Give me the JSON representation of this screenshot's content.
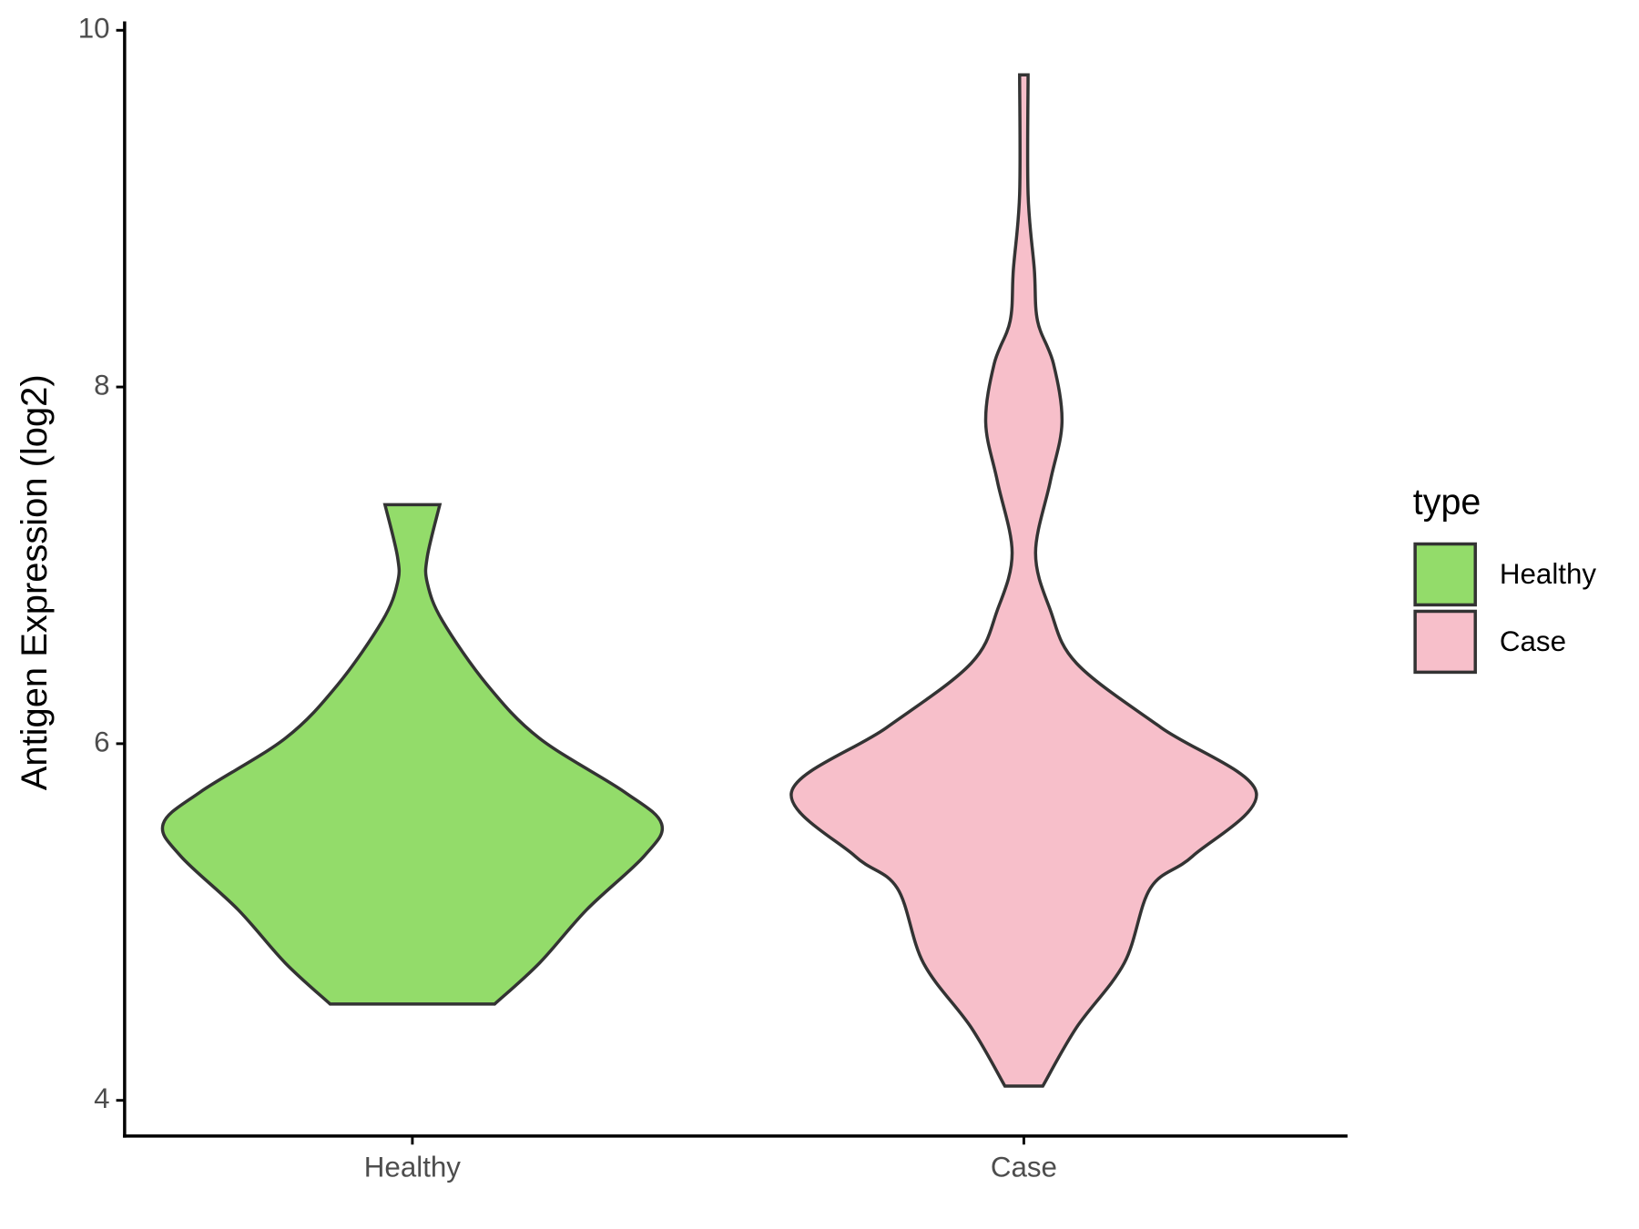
{
  "chart_data": {
    "type": "violin",
    "y_label": "Antigen Expression (log2)",
    "categories": [
      "Healthy",
      "Case"
    ],
    "legend_title": "type",
    "ylim": [
      3.8,
      10.05
    ],
    "yticks": [
      4,
      6,
      8,
      10
    ],
    "series": [
      {
        "name": "Healthy",
        "color": "#93dc6a",
        "y": [
          7.34,
          7.05,
          6.9,
          6.69,
          6.33,
          6.03,
          5.73,
          5.55,
          5.37,
          5.07,
          4.77,
          4.54
        ],
        "density": [
          0.11,
          0.06,
          0.06,
          0.12,
          0.3,
          0.51,
          0.85,
          1.0,
          0.93,
          0.7,
          0.51,
          0.33
        ]
      },
      {
        "name": "Case",
        "color": "#f7bfca",
        "y": [
          9.75,
          9.08,
          8.66,
          8.37,
          8.13,
          7.8,
          7.47,
          7.07,
          6.75,
          6.45,
          6.09,
          5.73,
          5.37,
          5.19,
          4.77,
          4.41,
          4.08
        ],
        "density": [
          0.017,
          0.017,
          0.042,
          0.055,
          0.119,
          0.153,
          0.106,
          0.047,
          0.106,
          0.212,
          0.551,
          0.932,
          0.678,
          0.508,
          0.403,
          0.212,
          0.076
        ]
      }
    ]
  }
}
